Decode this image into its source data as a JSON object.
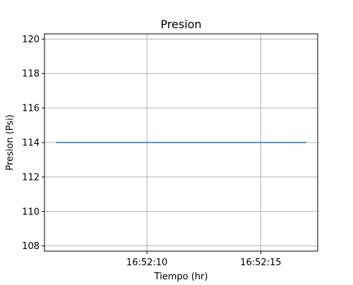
{
  "chart_data": {
    "type": "line",
    "title": "Presion",
    "xlabel": "Tiempo (hr)",
    "ylabel": "Presion (Psi)",
    "x_ticks": [
      "16:52:10",
      "16:52:15"
    ],
    "y_ticks": [
      108,
      110,
      112,
      114,
      116,
      118,
      120
    ],
    "xlim": [
      "16:52:05.5",
      "16:52:17.5"
    ],
    "ylim": [
      107.7,
      120.3
    ],
    "grid": true,
    "series": [
      {
        "color": "#1f77b4",
        "x": [
          "16:52:06",
          "16:52:17"
        ],
        "y": [
          114,
          114
        ]
      }
    ]
  }
}
